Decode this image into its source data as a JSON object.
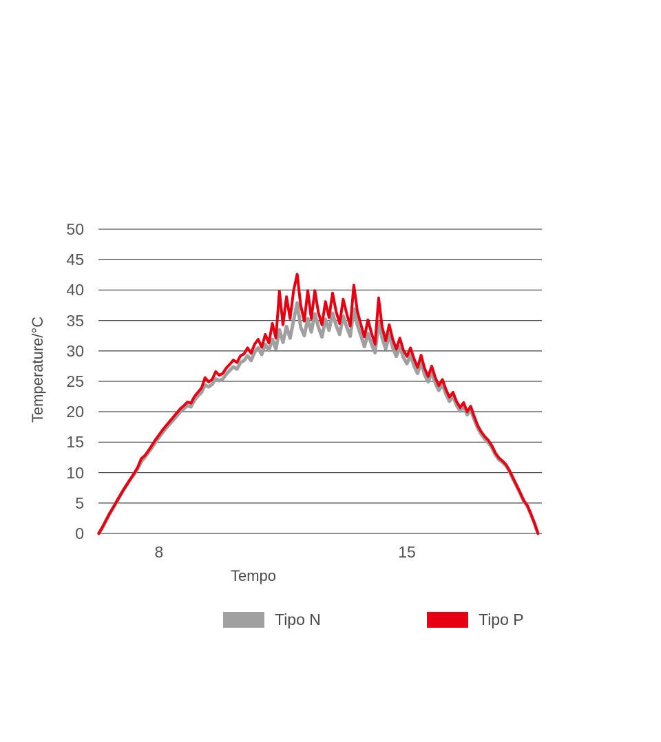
{
  "chart_data": {
    "type": "line",
    "title": "",
    "xlabel": "Tempo",
    "ylabel": "Temperature/°C",
    "xlim": [
      6.29,
      18.81
    ],
    "ylim": [
      0,
      50
    ],
    "x_ticks": [
      8,
      15
    ],
    "y_ticks": [
      0,
      5,
      10,
      15,
      20,
      25,
      30,
      35,
      40,
      45,
      50
    ],
    "grid": "horizontal",
    "legend_position": "bottom",
    "x_start": 6.3,
    "x_step": 0.1,
    "x_unit": "hours",
    "series": [
      {
        "name": "Tipo N",
        "color": "#a0a0a0",
        "stroke_width": 5,
        "values": [
          0,
          1.0,
          2.1,
          3.2,
          4.2,
          5.2,
          6.2,
          7.2,
          8.1,
          9.0,
          9.8,
          10.7,
          11.8,
          12.5,
          13.3,
          14.1,
          15.0,
          15.8,
          16.6,
          17.3,
          18.0,
          18.6,
          19.3,
          20.0,
          20.5,
          21.0,
          20.8,
          21.9,
          22.6,
          23.2,
          24.4,
          24.1,
          24.5,
          25.4,
          25.1,
          25.4,
          26.2,
          26.8,
          27.4,
          27.0,
          28.1,
          28.4,
          29.2,
          28.4,
          29.8,
          30.5,
          29.4,
          31.1,
          30.1,
          31.9,
          30.3,
          33.5,
          31.4,
          34.0,
          32.1,
          35.0,
          37.9,
          33.9,
          32.5,
          35.3,
          33.1,
          36.1,
          33.9,
          32.3,
          35.2,
          33.4,
          36.2,
          34.2,
          32.7,
          35.7,
          33.9,
          32.4,
          36.9,
          34.3,
          32.5,
          30.7,
          32.9,
          31.1,
          29.7,
          34.7,
          32.1,
          30.3,
          32.7,
          30.5,
          29.1,
          30.7,
          28.9,
          27.9,
          29.3,
          27.5,
          26.3,
          28.1,
          26.1,
          24.9,
          26.5,
          24.7,
          23.5,
          24.5,
          22.9,
          21.7,
          22.5,
          21.1,
          20.1,
          20.9,
          19.5,
          20.3,
          18.7,
          17.3,
          16.3,
          15.5,
          14.9,
          14.1,
          12.9,
          12.1,
          11.7,
          11.1,
          10.1,
          8.9,
          7.7,
          6.5,
          5.3,
          4.5,
          3.1,
          1.7,
          0
        ]
      },
      {
        "name": "Tipo P",
        "color": "#e60012",
        "stroke_width": 4,
        "values": [
          0,
          1.0,
          2.1,
          3.2,
          4.2,
          5.2,
          6.2,
          7.2,
          8.1,
          9.0,
          9.9,
          10.9,
          12.3,
          12.8,
          13.6,
          14.5,
          15.4,
          16.2,
          17.0,
          17.7,
          18.4,
          19.1,
          19.8,
          20.5,
          21.0,
          21.6,
          21.4,
          22.5,
          23.2,
          23.9,
          25.6,
          24.9,
          25.3,
          26.6,
          26.0,
          26.3,
          27.2,
          27.8,
          28.5,
          28.1,
          29.2,
          29.5,
          30.5,
          29.6,
          31.1,
          31.9,
          30.6,
          32.7,
          31.3,
          34.5,
          32.1,
          39.8,
          34.3,
          38.9,
          35.3,
          39.9,
          42.6,
          37.5,
          34.9,
          39.9,
          35.3,
          39.9,
          36.3,
          34.3,
          38.1,
          35.5,
          39.5,
          36.5,
          34.5,
          38.5,
          36.1,
          34.1,
          40.8,
          36.5,
          34.3,
          32.3,
          35.1,
          32.9,
          31.1,
          38.7,
          33.9,
          31.7,
          34.3,
          31.9,
          30.3,
          32.1,
          30.1,
          29.1,
          30.5,
          28.7,
          27.3,
          29.3,
          27.1,
          25.8,
          27.5,
          25.6,
          24.3,
          25.3,
          23.7,
          22.4,
          23.2,
          21.7,
          20.7,
          21.5,
          20.0,
          20.9,
          19.2,
          17.7,
          16.7,
          15.9,
          15.3,
          14.4,
          13.2,
          12.4,
          11.9,
          11.3,
          10.3,
          9.1,
          7.9,
          6.7,
          5.4,
          4.6,
          3.2,
          1.7,
          0
        ]
      }
    ],
    "colors": {
      "grid": "#4d4d4d",
      "tick_text": "#545454",
      "label_text": "#4a4a4a",
      "background": "#ffffff"
    }
  }
}
